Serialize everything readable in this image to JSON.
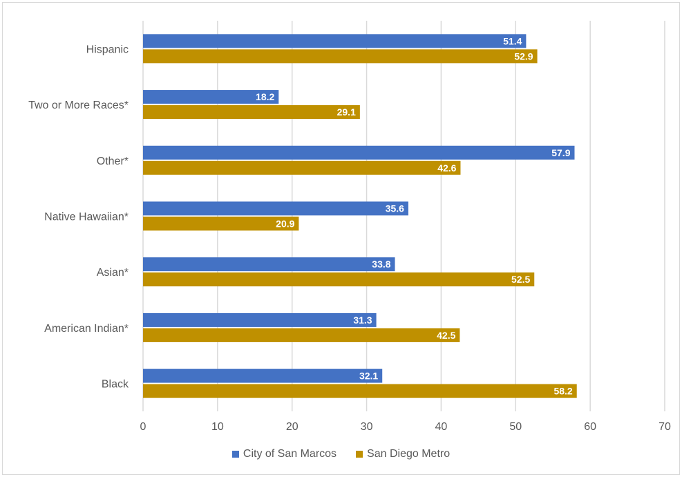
{
  "chart_data": {
    "type": "bar",
    "orientation": "horizontal",
    "categories": [
      "Hispanic",
      "Two or More Races*",
      "Other*",
      "Native Hawaiian*",
      "Asian*",
      "American Indian*",
      "Black"
    ],
    "series": [
      {
        "name": "City of San Marcos",
        "color": "#4472c4",
        "values": [
          51.4,
          18.2,
          57.9,
          35.6,
          33.8,
          31.3,
          32.1
        ]
      },
      {
        "name": "San Diego Metro",
        "color": "#bf9000",
        "values": [
          52.9,
          29.1,
          42.6,
          20.9,
          52.5,
          42.5,
          58.2
        ]
      }
    ],
    "xlim": [
      0,
      70
    ],
    "xticks": [
      0,
      10,
      20,
      30,
      40,
      50,
      60,
      70
    ],
    "grid": true,
    "legend_position": "bottom",
    "data_labels": true
  }
}
